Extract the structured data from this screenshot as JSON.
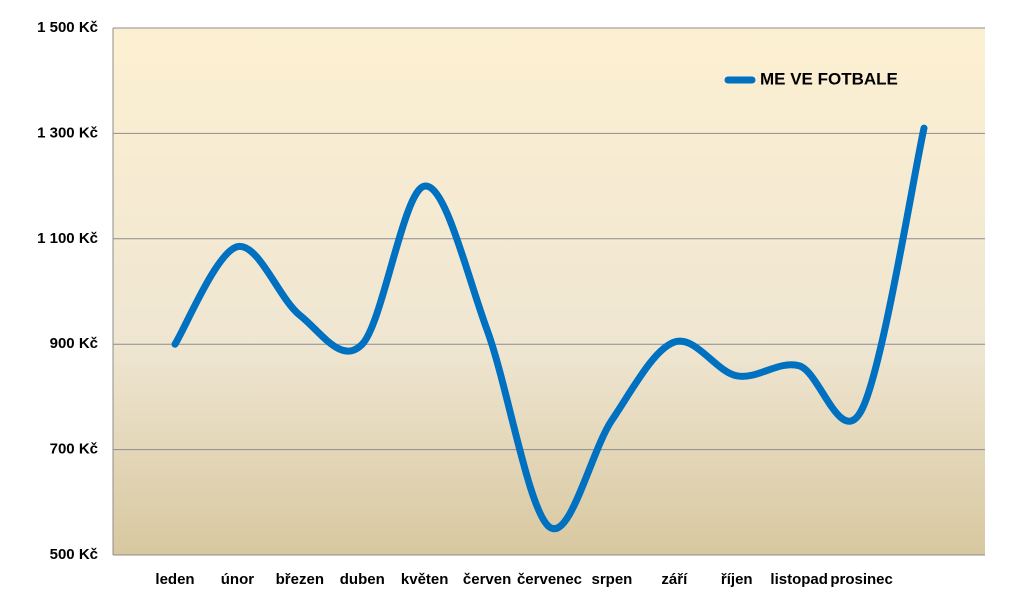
{
  "chart_data": {
    "type": "line",
    "categories": [
      "leden",
      "únor",
      "březen",
      "duben",
      "květen",
      "červen",
      "červenec",
      "srpen",
      "září",
      "říjen",
      "listopad",
      "prosinec",
      null
    ],
    "series": [
      {
        "name": "ME VE FOTBALE",
        "color": "#0070c0",
        "values": [
          900,
          1085,
          955,
          900,
          1200,
          927,
          553,
          756,
          904,
          840,
          859,
          775,
          1310
        ]
      }
    ],
    "ylim": [
      500,
      1500
    ],
    "yticks": [
      {
        "value": 500,
        "label": "500 Kč"
      },
      {
        "value": 700,
        "label": "700 Kč"
      },
      {
        "value": 900,
        "label": "900 Kč"
      },
      {
        "value": 1100,
        "label": "1 100 Kč"
      },
      {
        "value": 1300,
        "label": "1 300 Kč"
      },
      {
        "value": 1500,
        "label": "1 500 Kč"
      }
    ],
    "grid": true,
    "smooth": true,
    "legend": "top-right"
  }
}
